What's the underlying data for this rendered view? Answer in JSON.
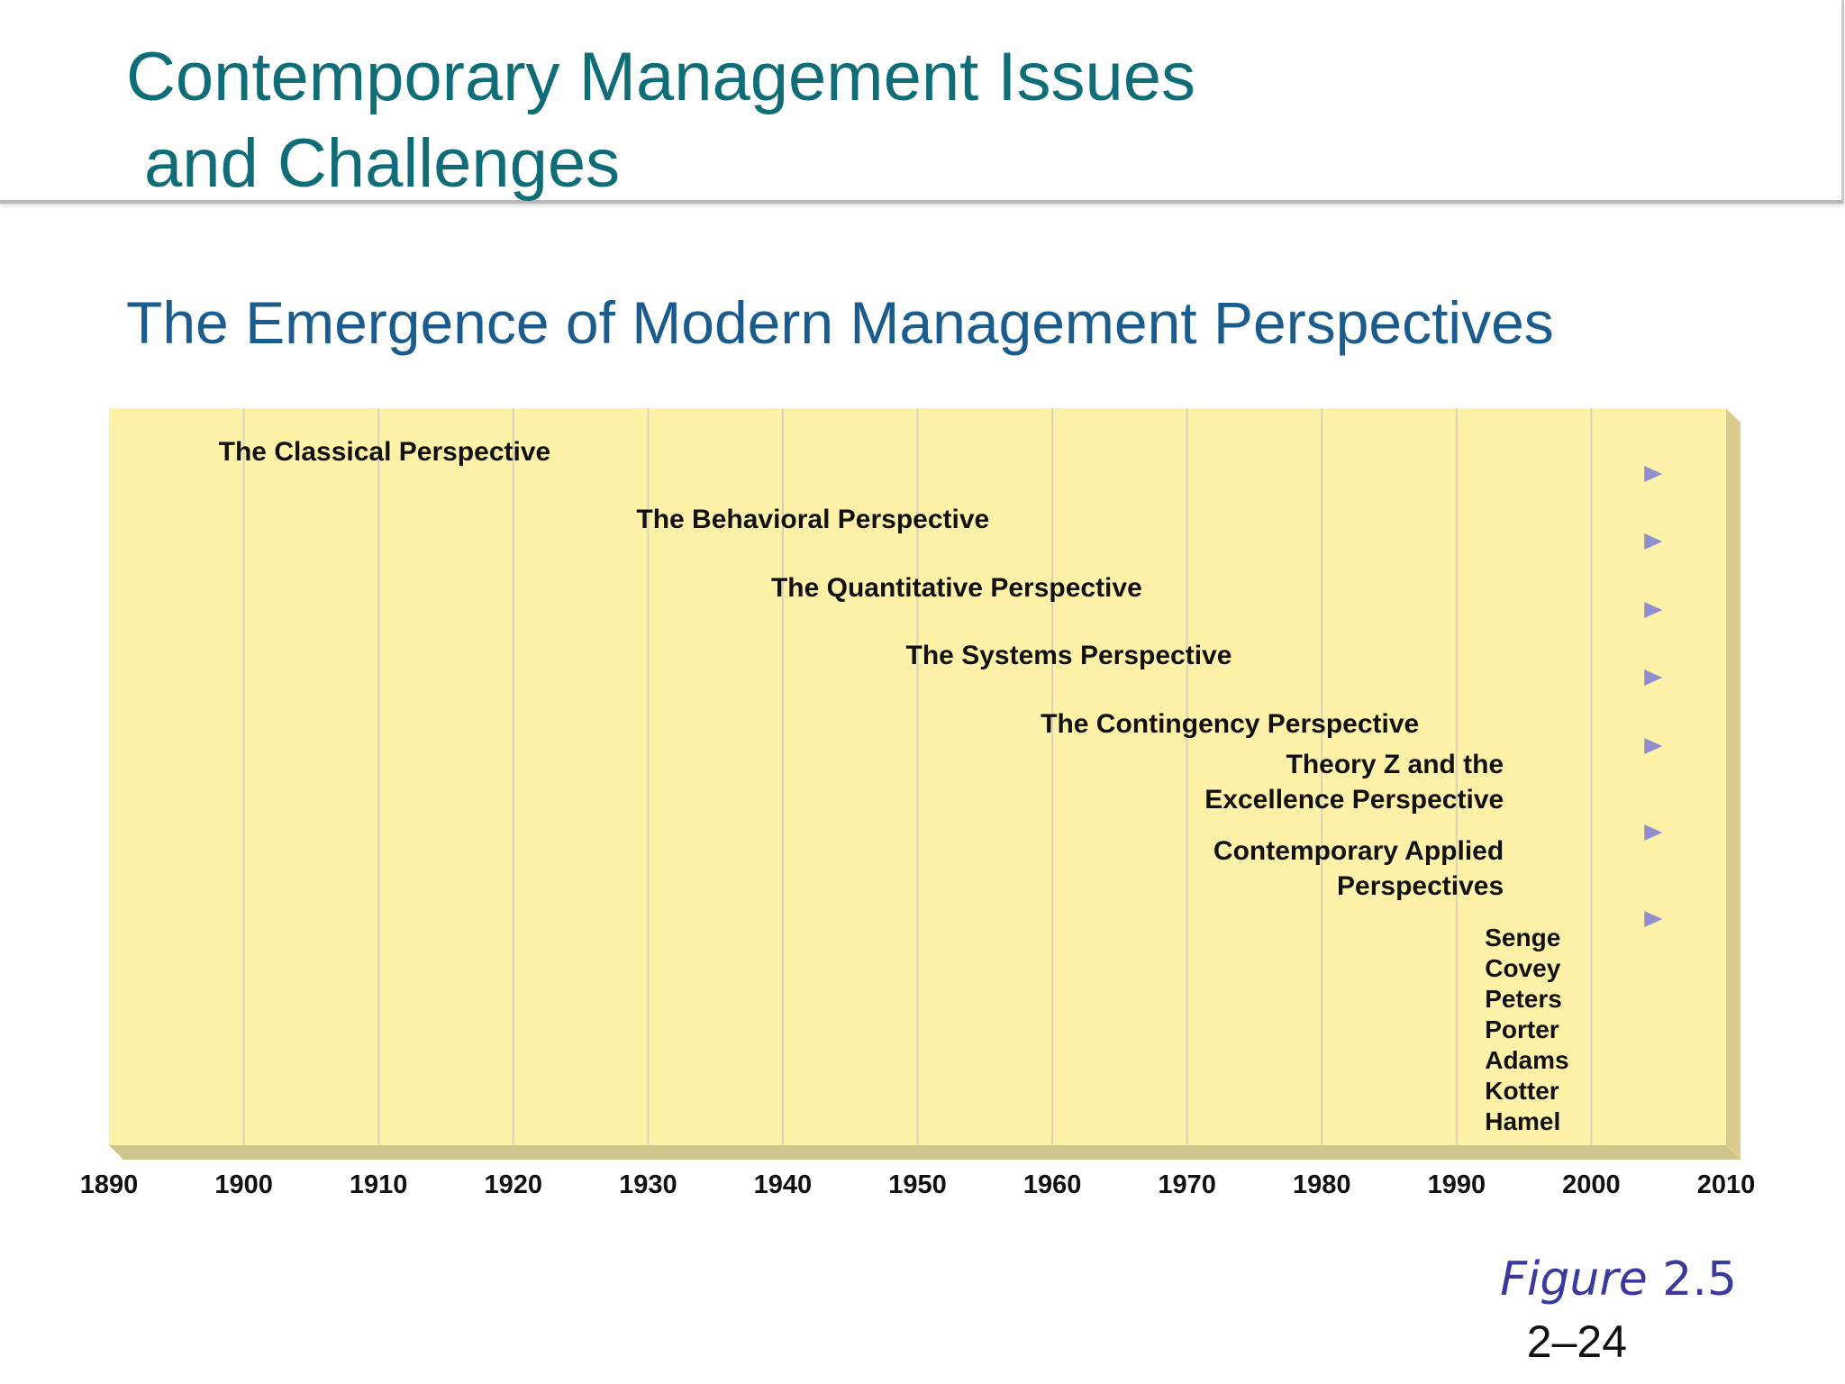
{
  "slide": {
    "title_line1": "Contemporary Management Issues",
    "title_line2": "and Challenges",
    "subtitle": "The Emergence of Modern Management Perspectives",
    "figure_word": "Figure",
    "figure_number": "2.5",
    "page_number": "2–24"
  },
  "timeline": {
    "start_year": 1890,
    "end_year": 2010,
    "years": [
      1890,
      1900,
      1910,
      1920,
      1930,
      1940,
      1950,
      1960,
      1970,
      1980,
      1990,
      2000,
      2010
    ],
    "arrow_end_year": 2005,
    "perspectives": [
      {
        "label": [
          "The Classical Perspective"
        ],
        "start": 1898
      },
      {
        "label": [
          "The Behavioral Perspective"
        ],
        "start": 1929
      },
      {
        "label": [
          "The Quantitative Perspective"
        ],
        "start": 1939
      },
      {
        "label": [
          "The Systems Perspective"
        ],
        "start": 1949
      },
      {
        "label": [
          "The Contingency Perspective"
        ],
        "start": 1959
      },
      {
        "label": [
          "Theory Z and the",
          "Excellence Perspective"
        ],
        "start": 1978
      },
      {
        "label": [
          "Contemporary Applied",
          "Perspectives"
        ],
        "start": 1987
      }
    ],
    "contributors": [
      "Senge",
      "Covey",
      "Peters",
      "Porter",
      "Adams",
      "Kotter",
      "Hamel"
    ],
    "colors": {
      "panel": "#fff1a8",
      "panel_side": "#d9cd8e",
      "panel_bottom": "#cfc489",
      "gridline": "#d9d4b8",
      "arrow": "#5a5aa8"
    }
  }
}
